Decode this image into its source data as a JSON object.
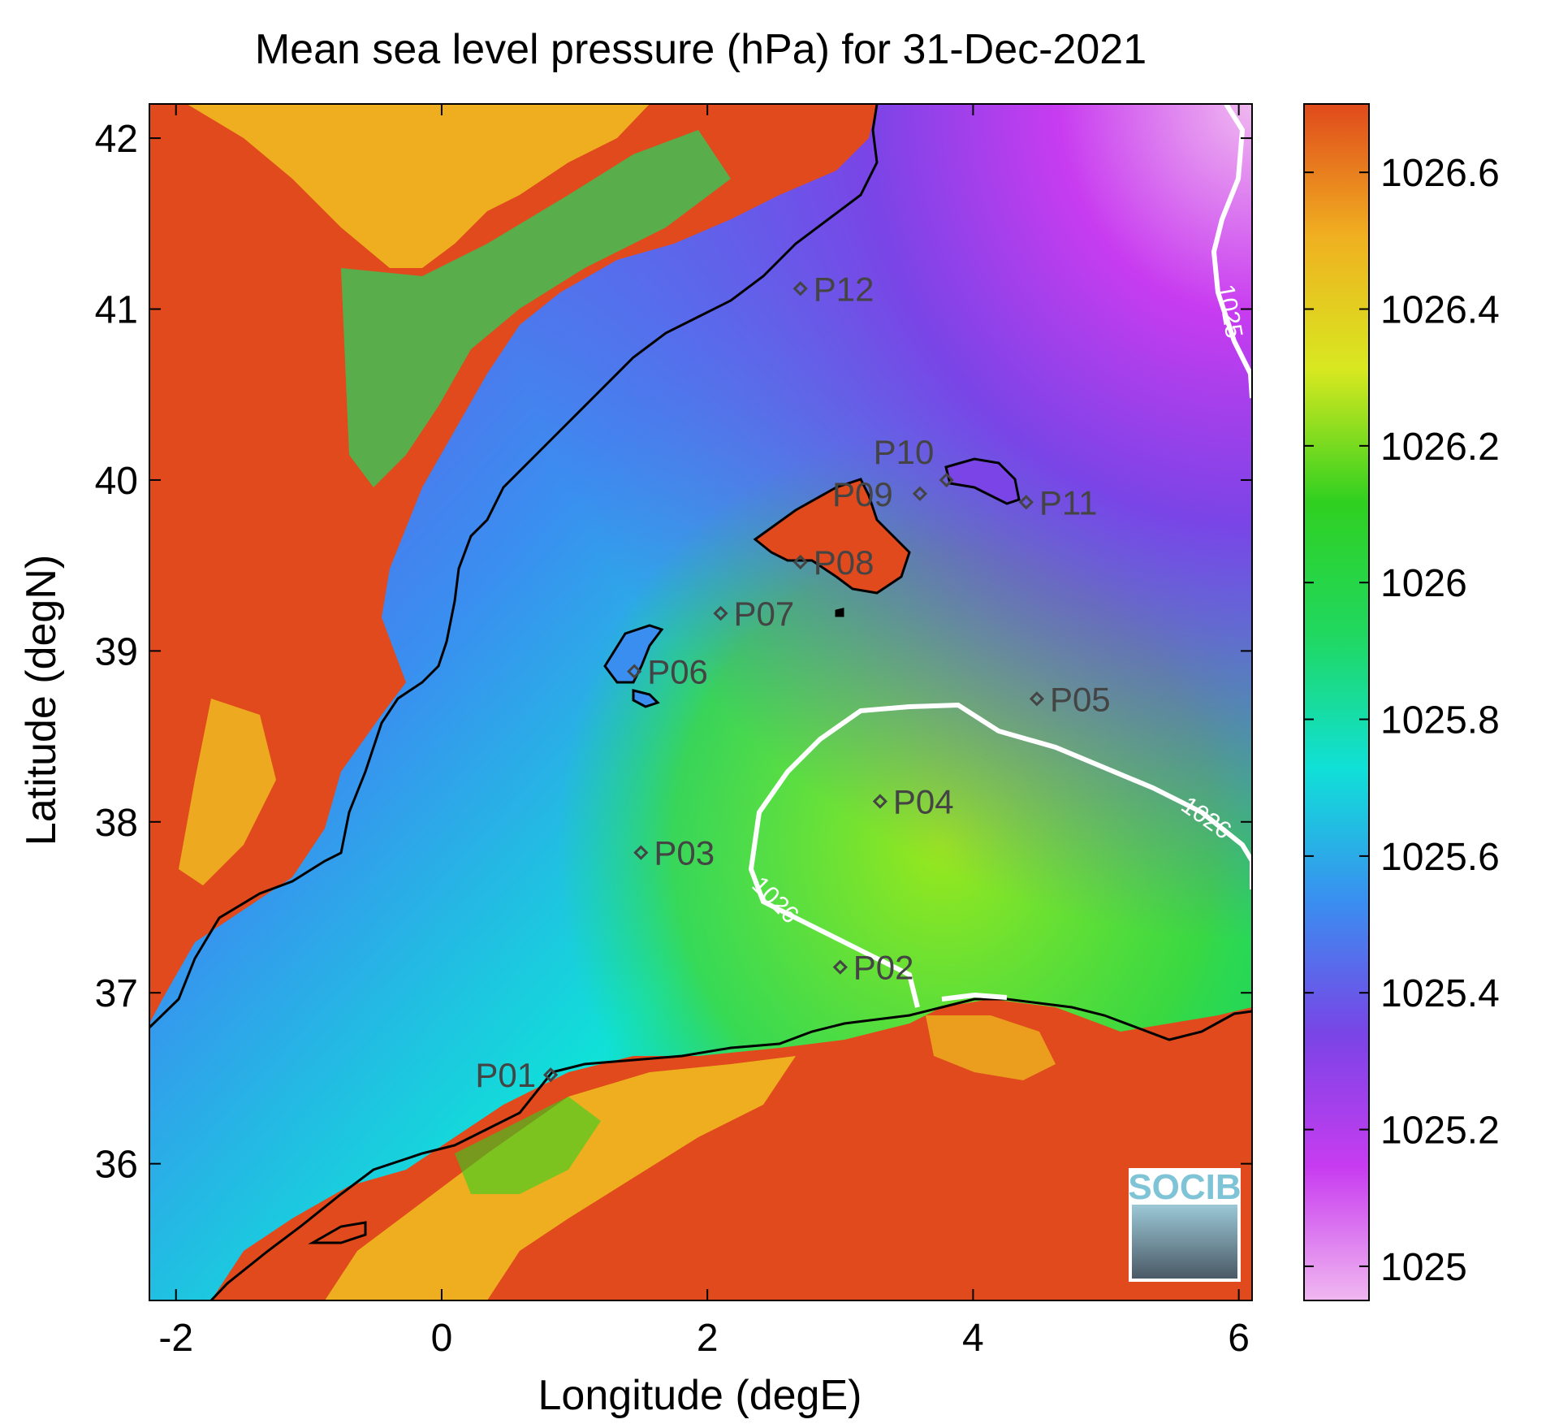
{
  "chart_data": {
    "type": "heatmap",
    "title": "Mean sea level pressure (hPa) for 31-Dec-2021",
    "xlabel": "Longitude (degE)",
    "ylabel": "Latitude (degN)",
    "xlim": [
      -2.2,
      6.1
    ],
    "ylim": [
      35.2,
      42.2
    ],
    "xticks": [
      -2,
      0,
      2,
      4,
      6
    ],
    "yticks": [
      36,
      37,
      38,
      39,
      40,
      41,
      42
    ],
    "colorbar": {
      "range": [
        1024.95,
        1026.7
      ],
      "ticks": [
        1025,
        1025.2,
        1025.4,
        1025.6,
        1025.8,
        1026,
        1026.2,
        1026.4,
        1026.6
      ],
      "colors": [
        "#f0b8f0",
        "#c83cf0",
        "#7a44e6",
        "#3a8ef0",
        "#10e0d8",
        "#20d860",
        "#30d020",
        "#d8e820",
        "#f0b020",
        "#e04a1c"
      ]
    },
    "contours": [
      {
        "level": 1026,
        "label": "1026"
      },
      {
        "level": 1025,
        "label": "1025"
      }
    ],
    "stations": [
      {
        "name": "P01",
        "lon": 0.82,
        "lat": 36.52
      },
      {
        "name": "P02",
        "lon": 3.0,
        "lat": 37.15
      },
      {
        "name": "P03",
        "lon": 1.5,
        "lat": 37.82
      },
      {
        "name": "P04",
        "lon": 3.3,
        "lat": 38.12
      },
      {
        "name": "P05",
        "lon": 4.48,
        "lat": 38.72
      },
      {
        "name": "P06",
        "lon": 1.45,
        "lat": 38.88
      },
      {
        "name": "P07",
        "lon": 2.1,
        "lat": 39.22
      },
      {
        "name": "P08",
        "lon": 2.7,
        "lat": 39.52
      },
      {
        "name": "P09",
        "lon": 3.6,
        "lat": 39.92
      },
      {
        "name": "P10",
        "lon": 3.8,
        "lat": 40.0
      },
      {
        "name": "P11",
        "lon": 4.4,
        "lat": 39.87
      },
      {
        "name": "P12",
        "lon": 2.7,
        "lat": 41.12
      }
    ]
  },
  "logo": {
    "text": "SOCIB"
  }
}
